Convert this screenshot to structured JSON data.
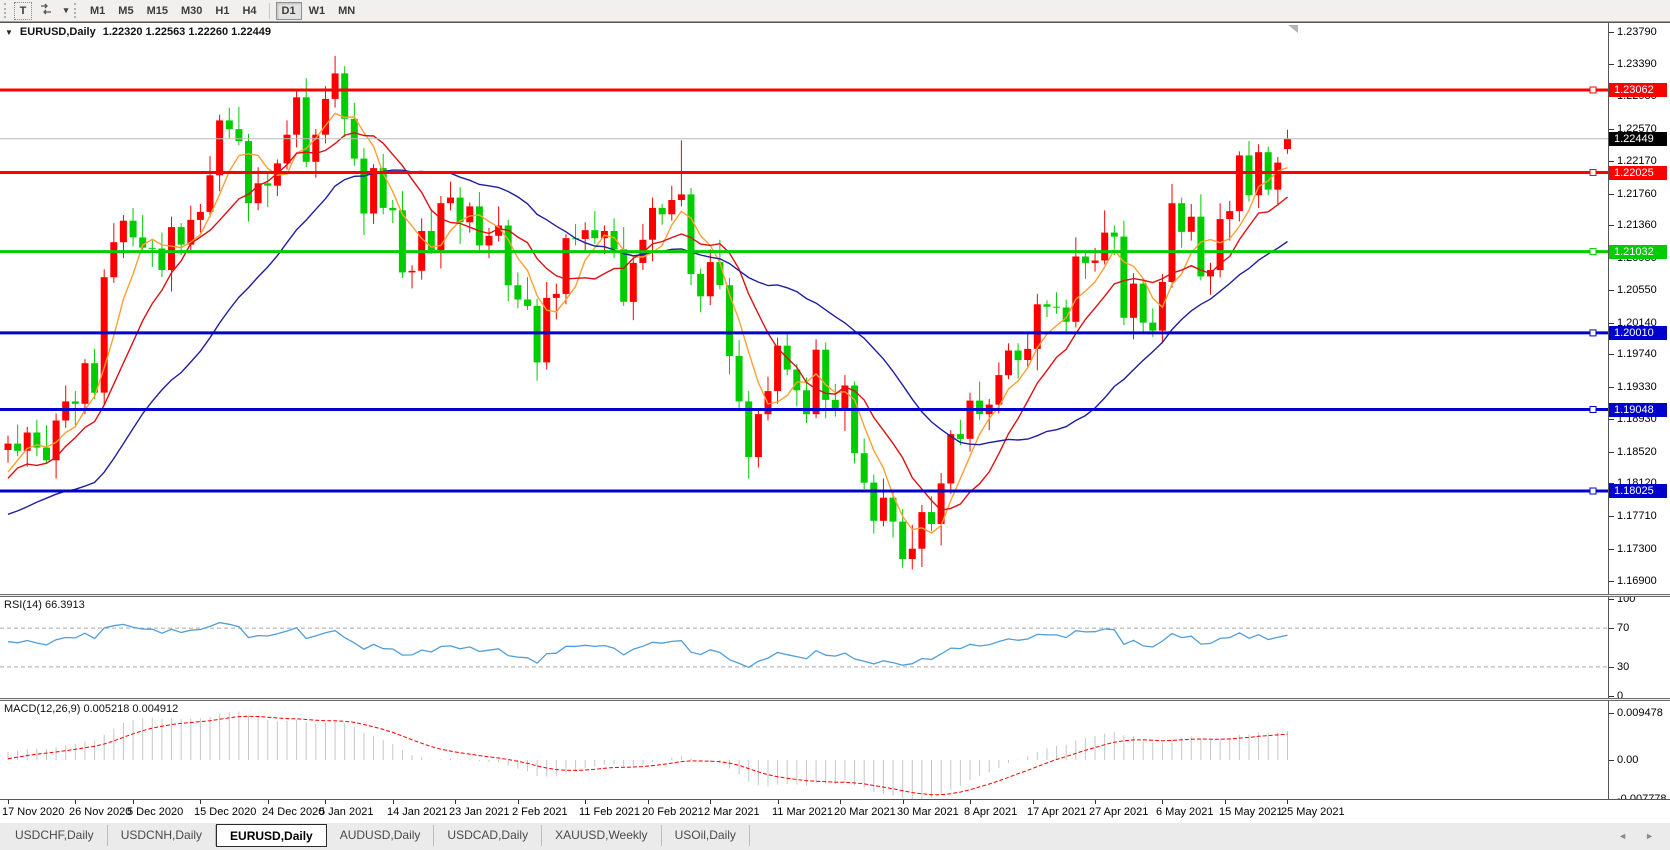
{
  "colors": {
    "up": "#ff0000",
    "down": "#00cc00",
    "hline_red": "#ff0000",
    "hline_green": "#00d400",
    "hline_blue": "#0000cc",
    "current_line": "#bbbbbb",
    "level_dash": "#ababab"
  },
  "toolbar": {
    "text_tool": "T",
    "dropdown_caret": "▾",
    "timeframes": [
      "M1",
      "M5",
      "M15",
      "M30",
      "H1",
      "H4",
      "D1",
      "W1",
      "MN"
    ],
    "active_timeframe": "D1"
  },
  "chart_header": {
    "collapse_caret": "▼",
    "symbol": "EURUSD,Daily",
    "ohlc_text": "1.22320 1.22563 1.22260 1.22449"
  },
  "price_axis": {
    "ticks": [
      "1.23790",
      "1.23390",
      "1.22980",
      "1.22570",
      "1.22170",
      "1.21760",
      "1.21360",
      "1.20950",
      "1.20550",
      "1.20140",
      "1.19740",
      "1.19330",
      "1.18930",
      "1.18520",
      "1.18120",
      "1.17710",
      "1.17300",
      "1.16900"
    ],
    "current_label": "1.22449"
  },
  "time_axis": {
    "labels": [
      "17 Nov 2020",
      "26 Nov 2020",
      "5 Dec 2020",
      "15 Dec 2020",
      "24 Dec 2020",
      "5 Jan 2021",
      "14 Jan 2021",
      "23 Jan 2021",
      "2 Feb 2021",
      "11 Feb 2021",
      "20 Feb 2021",
      "2 Mar 2021",
      "11 Mar 2021",
      "20 Mar 2021",
      "30 Mar 2021",
      "8 Apr 2021",
      "17 Apr 2021",
      "27 Apr 2021",
      "6 May 2021",
      "15 May 2021",
      "25 May 2021"
    ],
    "indices": [
      0,
      7,
      13,
      20,
      27,
      33,
      40,
      46.5,
      53,
      60,
      66.5,
      73,
      80,
      86.5,
      93,
      100,
      106.5,
      113,
      120,
      126.5,
      133
    ]
  },
  "tabs": {
    "items": [
      "USDCHF,Daily",
      "USDCNH,Daily",
      "EURUSD,Daily",
      "AUDUSD,Daily",
      "USDCAD,Daily",
      "XAUUSD,Weekly",
      "USOil,Daily"
    ],
    "active": "EURUSD,Daily",
    "scroll_left": "◄",
    "scroll_right": "►"
  },
  "chart_data": [
    {
      "type": "candlestick",
      "title": "EURUSD,Daily",
      "open": 1.2232,
      "high": 1.22563,
      "low": 1.2226,
      "close": 1.22449,
      "ylim": [
        1.16731,
        1.23903
      ],
      "grid": false,
      "up_color": "#ff0000",
      "down_color": "#00cc00",
      "current_price": {
        "price": 1.22449,
        "label": "1.22449"
      },
      "hlines": [
        {
          "price": 1.23062,
          "label": "1.23062",
          "color": "#ff0000"
        },
        {
          "price": 1.22025,
          "label": "1.22025",
          "color": "#ff0000"
        },
        {
          "price": 1.21032,
          "label": "1.21032",
          "color": "#00cc00"
        },
        {
          "price": 1.2001,
          "label": "1.20010",
          "color": "#0000cc"
        },
        {
          "price": 1.19048,
          "label": "1.19048",
          "color": "#0000cc"
        },
        {
          "price": 1.18025,
          "label": "1.18025",
          "color": "#0000cc"
        }
      ],
      "moving_averages": [
        {
          "name": "ma-fast",
          "period": 5,
          "color": "#ffa030"
        },
        {
          "name": "ma-mid",
          "period": 10,
          "color": "#dd1111"
        },
        {
          "name": "ma-slow",
          "period": 25,
          "color": "#1f1fa0"
        }
      ],
      "prehistory_closes": [
        1.1813,
        1.1745,
        1.1747,
        1.1709,
        1.1718,
        1.1767,
        1.1822,
        1.1852,
        1.186,
        1.1812,
        1.175,
        1.1686,
        1.1673,
        1.1647,
        1.1641,
        1.1716,
        1.1724,
        1.1826,
        1.1874,
        1.1813,
        1.1815,
        1.1779,
        1.1803,
        1.1834,
        1.1854
      ],
      "candles": [
        [
          1.1854,
          1.1872,
          1.1838,
          1.1862
        ],
        [
          1.1862,
          1.1886,
          1.1846,
          1.1853
        ],
        [
          1.1853,
          1.1883,
          1.1833,
          1.1876
        ],
        [
          1.1876,
          1.1892,
          1.1846,
          1.1857
        ],
        [
          1.1857,
          1.1885,
          1.1836,
          1.1841
        ],
        [
          1.1841,
          1.19,
          1.1818,
          1.1891
        ],
        [
          1.1891,
          1.1935,
          1.1882,
          1.1915
        ],
        [
          1.1915,
          1.1928,
          1.1885,
          1.1912
        ],
        [
          1.1912,
          1.1968,
          1.1899,
          1.1963
        ],
        [
          1.1963,
          1.1981,
          1.1918,
          1.1926
        ],
        [
          1.1926,
          1.2081,
          1.191,
          1.2071
        ],
        [
          1.2071,
          1.2139,
          1.2064,
          1.2115
        ],
        [
          1.2115,
          1.2149,
          1.2095,
          1.2142
        ],
        [
          1.2142,
          1.2158,
          1.211,
          1.2121
        ],
        [
          1.2121,
          1.2149,
          1.2103,
          1.2108
        ],
        [
          1.2108,
          1.2117,
          1.2084,
          1.2107
        ],
        [
          1.2107,
          1.2127,
          1.2071,
          1.208
        ],
        [
          1.208,
          1.2147,
          1.2053,
          1.2134
        ],
        [
          1.2134,
          1.2139,
          1.2099,
          1.2112
        ],
        [
          1.2112,
          1.2161,
          1.2104,
          1.2143
        ],
        [
          1.2143,
          1.2163,
          1.2127,
          1.2153
        ],
        [
          1.2153,
          1.2223,
          1.2146,
          1.2199
        ],
        [
          1.2199,
          1.2275,
          1.2179,
          1.2268
        ],
        [
          1.2268,
          1.2284,
          1.2246,
          1.2257
        ],
        [
          1.2257,
          1.2285,
          1.2237,
          1.2242
        ],
        [
          1.2242,
          1.2251,
          1.2141,
          1.2164
        ],
        [
          1.2164,
          1.2209,
          1.2155,
          1.2189
        ],
        [
          1.2189,
          1.2202,
          1.2159,
          1.2186
        ],
        [
          1.2186,
          1.2219,
          1.2173,
          1.2214
        ],
        [
          1.2214,
          1.2268,
          1.2206,
          1.225
        ],
        [
          1.225,
          1.2307,
          1.2234,
          1.2297
        ],
        [
          1.2297,
          1.2321,
          1.2209,
          1.2216
        ],
        [
          1.2216,
          1.2257,
          1.2196,
          1.225
        ],
        [
          1.225,
          1.2311,
          1.2239,
          1.2295
        ],
        [
          1.2295,
          1.2349,
          1.2284,
          1.2327
        ],
        [
          1.2327,
          1.2336,
          1.2247,
          1.227
        ],
        [
          1.227,
          1.229,
          1.2211,
          1.222
        ],
        [
          1.222,
          1.2233,
          1.2124,
          1.2151
        ],
        [
          1.2151,
          1.2213,
          1.2138,
          1.2208
        ],
        [
          1.2208,
          1.2226,
          1.215,
          1.2158
        ],
        [
          1.2158,
          1.2168,
          1.2139,
          1.2155
        ],
        [
          1.2155,
          1.2179,
          1.207,
          1.2077
        ],
        [
          1.2077,
          1.2086,
          1.2057,
          1.2079
        ],
        [
          1.2079,
          1.2145,
          1.2068,
          1.2129
        ],
        [
          1.2129,
          1.2157,
          1.21,
          1.2105
        ],
        [
          1.2105,
          1.2173,
          1.2082,
          1.2164
        ],
        [
          1.2164,
          1.2191,
          1.2155,
          1.2171
        ],
        [
          1.2171,
          1.2184,
          1.2113,
          1.214
        ],
        [
          1.214,
          1.2165,
          1.2127,
          1.216
        ],
        [
          1.216,
          1.2178,
          1.2103,
          1.2111
        ],
        [
          1.2111,
          1.2133,
          1.2095,
          1.2123
        ],
        [
          1.2123,
          1.216,
          1.2116,
          1.2136
        ],
        [
          1.2136,
          1.2143,
          1.2041,
          1.2061
        ],
        [
          1.2061,
          1.2077,
          1.2032,
          1.2043
        ],
        [
          1.2043,
          1.2071,
          1.203,
          1.2035
        ],
        [
          1.2035,
          1.2044,
          1.1941,
          1.1964
        ],
        [
          1.1964,
          1.2065,
          1.1955,
          1.2045
        ],
        [
          1.2045,
          1.2063,
          1.2018,
          1.205
        ],
        [
          1.205,
          1.2125,
          1.2037,
          1.212
        ],
        [
          1.212,
          1.2138,
          1.2111,
          1.2119
        ],
        [
          1.2119,
          1.214,
          1.2103,
          1.213
        ],
        [
          1.213,
          1.2154,
          1.2113,
          1.212
        ],
        [
          1.212,
          1.2136,
          1.21,
          1.2129
        ],
        [
          1.2129,
          1.2145,
          1.2095,
          1.2106
        ],
        [
          1.2106,
          1.2134,
          1.2035,
          1.204
        ],
        [
          1.204,
          1.2098,
          1.2017,
          1.2089
        ],
        [
          1.2089,
          1.2138,
          1.208,
          1.2118
        ],
        [
          1.2118,
          1.2171,
          1.2091,
          1.2158
        ],
        [
          1.2158,
          1.2163,
          1.2137,
          1.215
        ],
        [
          1.215,
          1.2186,
          1.2142,
          1.2168
        ],
        [
          1.2168,
          1.2243,
          1.216,
          1.2175
        ],
        [
          1.2175,
          1.2183,
          1.2061,
          1.2075
        ],
        [
          1.2075,
          1.2082,
          1.2027,
          1.2047
        ],
        [
          1.2047,
          1.2106,
          1.2036,
          1.209
        ],
        [
          1.209,
          1.2118,
          1.2056,
          1.2061
        ],
        [
          1.2061,
          1.207,
          1.1949,
          1.1972
        ],
        [
          1.1972,
          1.1992,
          1.1906,
          1.1915
        ],
        [
          1.1915,
          1.1928,
          1.1818,
          1.1845
        ],
        [
          1.1845,
          1.1904,
          1.1832,
          1.1899
        ],
        [
          1.1899,
          1.1946,
          1.1891,
          1.1928
        ],
        [
          1.1928,
          1.1995,
          1.1912,
          1.1985
        ],
        [
          1.1985,
          1.1999,
          1.1948,
          1.1955
        ],
        [
          1.1955,
          1.1962,
          1.1909,
          1.1929
        ],
        [
          1.1929,
          1.1945,
          1.1888,
          1.1899
        ],
        [
          1.1899,
          1.1993,
          1.1894,
          1.198
        ],
        [
          1.198,
          1.1989,
          1.1894,
          1.1917
        ],
        [
          1.1917,
          1.1937,
          1.1896,
          1.1905
        ],
        [
          1.1905,
          1.1948,
          1.1878,
          1.1935
        ],
        [
          1.1935,
          1.194,
          1.1837,
          1.185
        ],
        [
          1.185,
          1.1868,
          1.1805,
          1.1813
        ],
        [
          1.1813,
          1.1823,
          1.1749,
          1.1765
        ],
        [
          1.1765,
          1.1818,
          1.1758,
          1.1794
        ],
        [
          1.1794,
          1.1801,
          1.1744,
          1.1764
        ],
        [
          1.1764,
          1.178,
          1.1706,
          1.1717
        ],
        [
          1.1717,
          1.176,
          1.1704,
          1.173
        ],
        [
          1.173,
          1.1785,
          1.1707,
          1.1776
        ],
        [
          1.1776,
          1.1796,
          1.1752,
          1.1761
        ],
        [
          1.1761,
          1.1825,
          1.1734,
          1.1812
        ],
        [
          1.1812,
          1.1879,
          1.1799,
          1.1874
        ],
        [
          1.1874,
          1.1892,
          1.186,
          1.1868
        ],
        [
          1.1868,
          1.1926,
          1.1852,
          1.1916
        ],
        [
          1.1916,
          1.194,
          1.1892,
          1.1899
        ],
        [
          1.1899,
          1.1918,
          1.1879,
          1.1911
        ],
        [
          1.1911,
          1.1964,
          1.19,
          1.1948
        ],
        [
          1.1948,
          1.1988,
          1.1943,
          1.1979
        ],
        [
          1.1979,
          1.1988,
          1.1944,
          1.1967
        ],
        [
          1.1967,
          1.2001,
          1.1958,
          1.1981
        ],
        [
          1.1981,
          1.205,
          1.1954,
          1.2037
        ],
        [
          1.2037,
          1.2042,
          1.2021,
          1.2034
        ],
        [
          1.2034,
          1.2052,
          1.2025,
          1.2033
        ],
        [
          1.2033,
          1.2043,
          1.1999,
          1.2015
        ],
        [
          1.2015,
          1.2121,
          1.2008,
          1.2097
        ],
        [
          1.2097,
          1.2104,
          1.2069,
          1.2089
        ],
        [
          1.2089,
          1.2108,
          1.2078,
          1.2092
        ],
        [
          1.2092,
          1.2155,
          1.2087,
          1.2127
        ],
        [
          1.2127,
          1.2136,
          1.2099,
          1.2122
        ],
        [
          1.2122,
          1.2142,
          1.2011,
          1.202
        ],
        [
          1.202,
          1.2076,
          1.1993,
          1.2063
        ],
        [
          1.2063,
          1.2068,
          1.2001,
          1.2014
        ],
        [
          1.2014,
          1.2032,
          1.1996,
          1.2004
        ],
        [
          1.2004,
          1.2075,
          1.1988,
          1.2065
        ],
        [
          1.2065,
          1.2188,
          1.2058,
          1.2164
        ],
        [
          1.2164,
          1.2171,
          1.2108,
          1.2128
        ],
        [
          1.2128,
          1.2163,
          1.2117,
          1.2147
        ],
        [
          1.2147,
          1.2175,
          1.2067,
          1.2072
        ],
        [
          1.2072,
          1.2089,
          1.2049,
          1.208
        ],
        [
          1.208,
          1.2164,
          1.2071,
          1.2144
        ],
        [
          1.2144,
          1.2167,
          1.2117,
          1.2154
        ],
        [
          1.2154,
          1.2229,
          1.2141,
          1.2224
        ],
        [
          1.2224,
          1.2242,
          1.2166,
          1.2174
        ],
        [
          1.2174,
          1.2238,
          1.2158,
          1.2228
        ],
        [
          1.2228,
          1.2235,
          1.2174,
          1.2181
        ],
        [
          1.2181,
          1.2222,
          1.2161,
          1.2215
        ],
        [
          1.2232,
          1.22563,
          1.2226,
          1.22449
        ]
      ]
    },
    {
      "type": "line",
      "name": "RSI",
      "label": "RSI(14) 66.3913",
      "period": 14,
      "current_value": 66.3913,
      "ylim": [
        0,
        100
      ],
      "levels": [
        70,
        30
      ],
      "axis_labels": [
        "100",
        "70",
        "30",
        "0"
      ],
      "axis_values": [
        100,
        70,
        30,
        0
      ],
      "line_color": "#4f9fd8"
    },
    {
      "type": "bar",
      "name": "MACD",
      "label": "MACD(12,26,9) 0.005218 0.004912",
      "fast": 12,
      "slow": 26,
      "signal": 9,
      "macd_value": 0.005218,
      "signal_value": 0.004912,
      "axis_labels": [
        "0.009478",
        "0.00",
        "-0.007778"
      ],
      "axis_values": [
        0.009478,
        0,
        -0.007778
      ],
      "hist_color": "#c6c6c6",
      "signal_color": "#ff0000"
    }
  ]
}
